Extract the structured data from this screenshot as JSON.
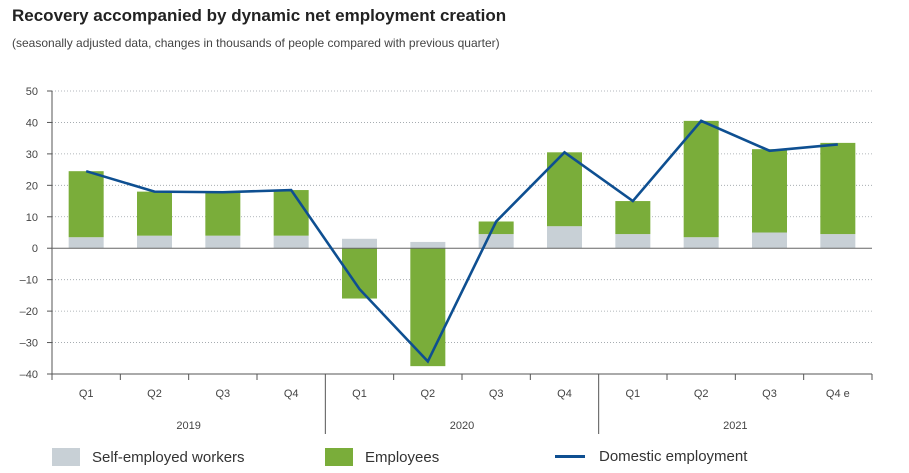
{
  "chart_data": {
    "type": "bar",
    "title": "Recovery accompanied by dynamic net employment creation",
    "subtitle": "(seasonally adjusted data, changes in thousands of people compared with previous quarter)",
    "quarters": [
      "Q1",
      "Q2",
      "Q3",
      "Q4",
      "Q1",
      "Q2",
      "Q3",
      "Q4",
      "Q1",
      "Q2",
      "Q3",
      "Q4 e"
    ],
    "years": [
      "2019",
      "2020",
      "2021"
    ],
    "ylim": [
      -40,
      50
    ],
    "yticks": [
      50,
      40,
      30,
      20,
      10,
      0,
      -10,
      -20,
      -30,
      -40
    ],
    "ytick_labels": [
      "50",
      "40",
      "30",
      "20",
      "10",
      "0",
      "–10",
      "–20",
      "–30",
      "–40"
    ],
    "grid": true,
    "legend_placement": "bottom",
    "series": [
      {
        "name": "Self-employed workers",
        "kind": "bar",
        "color": "#c8d0d6",
        "values": [
          3.5,
          4,
          4,
          4,
          3,
          2,
          4.5,
          7,
          4.5,
          3.5,
          5,
          4.5
        ]
      },
      {
        "name": "Employees",
        "kind": "bar",
        "color": "#7aad3a",
        "values": [
          21,
          14,
          14,
          14.5,
          -16,
          -37.5,
          4,
          23.5,
          10.5,
          37,
          26.5,
          29
        ]
      },
      {
        "name": "Domestic employment",
        "kind": "line",
        "color": "#0e4f91",
        "values": [
          24.5,
          18,
          17.8,
          18.5,
          -13,
          -36,
          8.5,
          30.5,
          15,
          40.5,
          31,
          33
        ]
      }
    ]
  }
}
